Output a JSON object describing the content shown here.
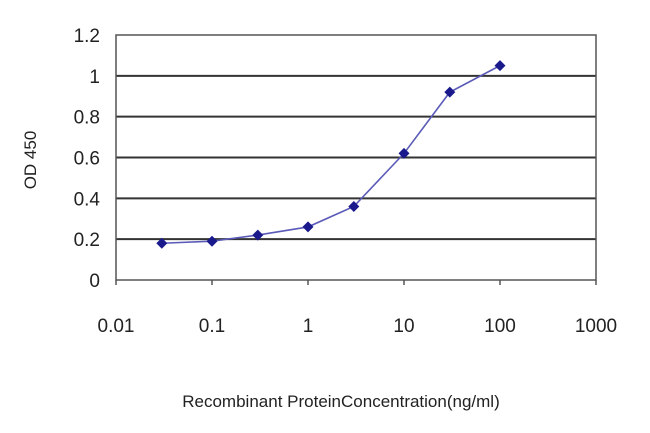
{
  "chart_data": {
    "type": "line",
    "title": "",
    "xlabel": "Recombinant ProteinConcentration(ng/ml)",
    "ylabel": "OD 450",
    "x_scale": "log",
    "xlim": [
      0.01,
      1000
    ],
    "ylim": [
      0,
      1.2
    ],
    "x_ticks": [
      "0.01",
      "0.1",
      "1",
      "10",
      "100",
      "1000"
    ],
    "y_ticks": [
      "0",
      "0.2",
      "0.4",
      "0.6",
      "0.8",
      "1",
      "1.2"
    ],
    "grid": "horizontal",
    "legend": "none",
    "series": [
      {
        "color": "#1a1a8c",
        "marker": "diamond",
        "x": [
          0.03,
          0.1,
          0.3,
          1,
          3,
          10,
          30,
          100
        ],
        "y": [
          0.18,
          0.19,
          0.22,
          0.26,
          0.36,
          0.62,
          0.92,
          1.05
        ]
      }
    ]
  }
}
